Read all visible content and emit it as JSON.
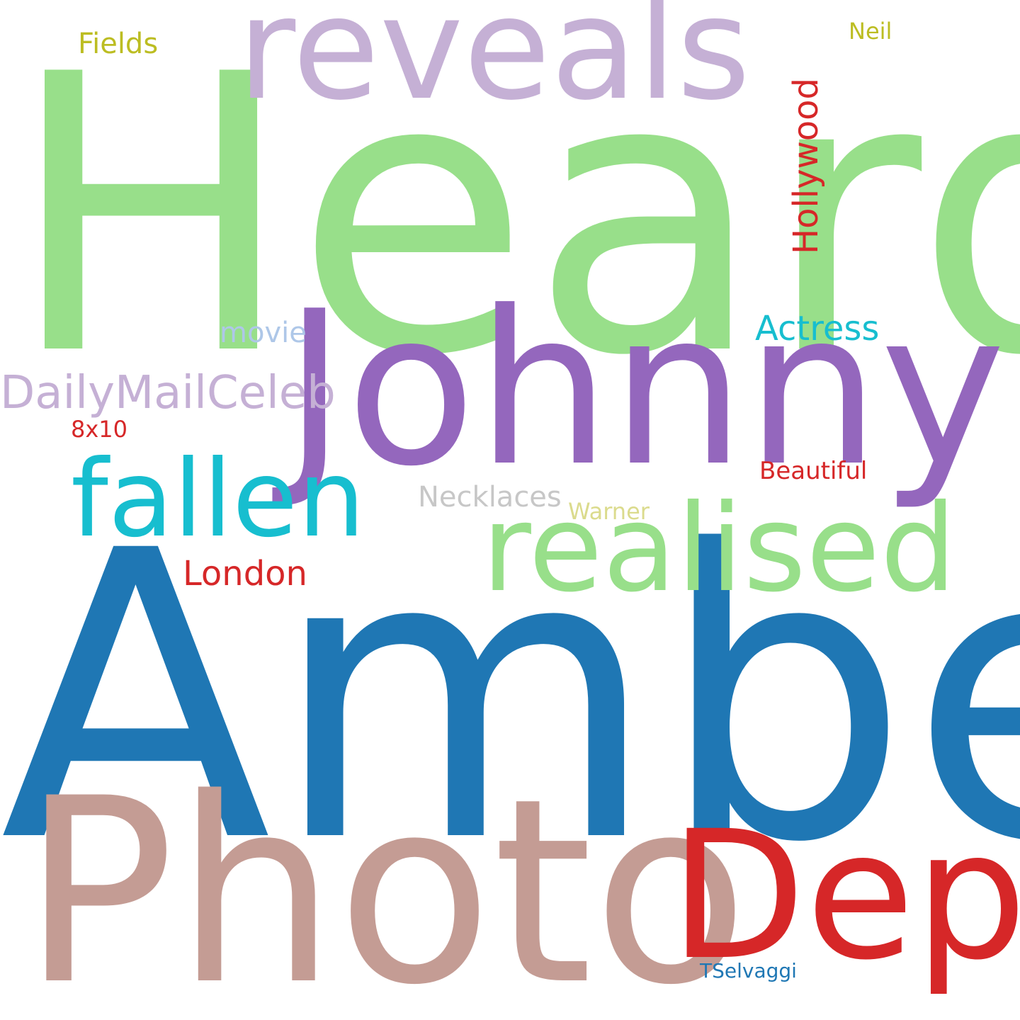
{
  "words": [
    {
      "text": "Heard",
      "color": "#98df8a"
    },
    {
      "text": "Amber",
      "color": "#1f77b4"
    },
    {
      "text": "Photo",
      "color": "#c49c94"
    },
    {
      "text": "Johnny",
      "color": "#9467bd"
    },
    {
      "text": "reveals",
      "color": "#c5b0d5"
    },
    {
      "text": "Depp",
      "color": "#d62728"
    },
    {
      "text": "realised",
      "color": "#98df8a"
    },
    {
      "text": "fallen",
      "color": "#17becf"
    },
    {
      "text": "DailyMailCeleb",
      "color": "#c5b0d5"
    },
    {
      "text": "Hollywood",
      "color": "#d62728"
    },
    {
      "text": "Actress",
      "color": "#17becf"
    },
    {
      "text": "London",
      "color": "#d62728"
    },
    {
      "text": "Necklaces",
      "color": "#c7c7c7"
    },
    {
      "text": "movie",
      "color": "#aec7e8"
    },
    {
      "text": "Fields",
      "color": "#bcbd22"
    },
    {
      "text": "Beautiful",
      "color": "#d62728"
    },
    {
      "text": "Warner",
      "color": "#dbdb8d"
    },
    {
      "text": "Neil",
      "color": "#bcbd22"
    },
    {
      "text": "8x10",
      "color": "#d62728"
    },
    {
      "text": "TSelvaggi",
      "color": "#1f77b4"
    }
  ]
}
